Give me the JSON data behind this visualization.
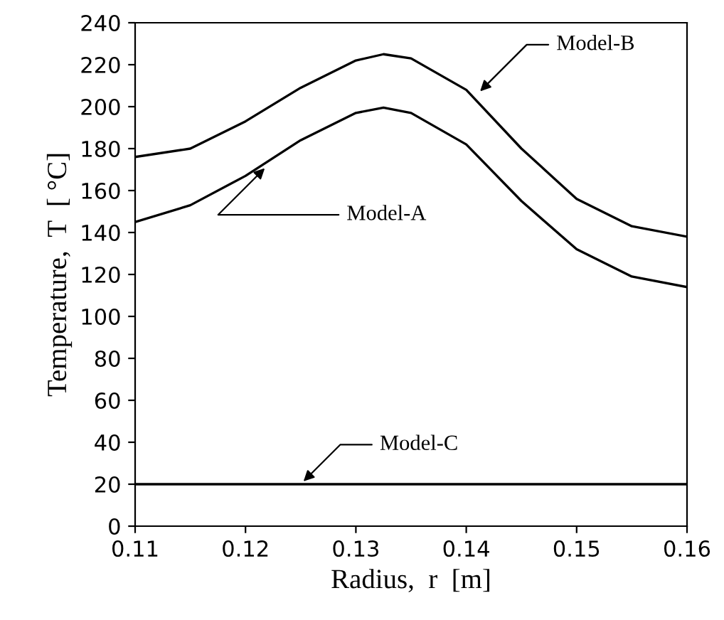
{
  "chart_data": {
    "type": "line",
    "xlabel": "Radius,  r  [m]",
    "ylabel": "Temperature,  T  [ °C]",
    "x": [
      0.11,
      0.115,
      0.12,
      0.125,
      0.13,
      0.1325,
      0.135,
      0.14,
      0.145,
      0.15,
      0.155,
      0.16
    ],
    "series": [
      {
        "color": "#000000",
        "values": [
          145,
          153,
          167,
          184,
          197,
          199.5,
          197,
          182,
          155,
          132,
          119,
          114
        ]
      },
      {
        "color": "#000000",
        "values": [
          176,
          180,
          193,
          209,
          222,
          225,
          223,
          208,
          180,
          156,
          143,
          138
        ]
      },
      {
        "color": "#000000",
        "values": [
          20,
          20,
          20,
          20,
          20,
          20,
          20,
          20,
          20,
          20,
          20,
          20
        ]
      }
    ],
    "annotations": [
      {
        "text": "Model-A",
        "x": 0.122,
        "y": 172
      },
      {
        "text": "Model-B",
        "x": 0.141,
        "y": 206
      },
      {
        "text": "Model-C",
        "x": 0.125,
        "y": 20
      }
    ],
    "xlim": [
      0.11,
      0.16
    ],
    "xticks": [
      {
        "value": 0.11,
        "label": "0.11"
      },
      {
        "value": 0.12,
        "label": "0.12"
      },
      {
        "value": 0.13,
        "label": "0.13"
      },
      {
        "value": 0.14,
        "label": "0.14"
      },
      {
        "value": 0.15,
        "label": "0.15"
      },
      {
        "value": 0.16,
        "label": "0.16"
      }
    ],
    "ylim": [
      0,
      240
    ],
    "yticks": [
      0,
      20,
      40,
      60,
      80,
      100,
      120,
      140,
      160,
      180,
      200,
      220,
      240
    ],
    "grid": false,
    "legend": false,
    "line_style": "solid",
    "marker": "none"
  }
}
